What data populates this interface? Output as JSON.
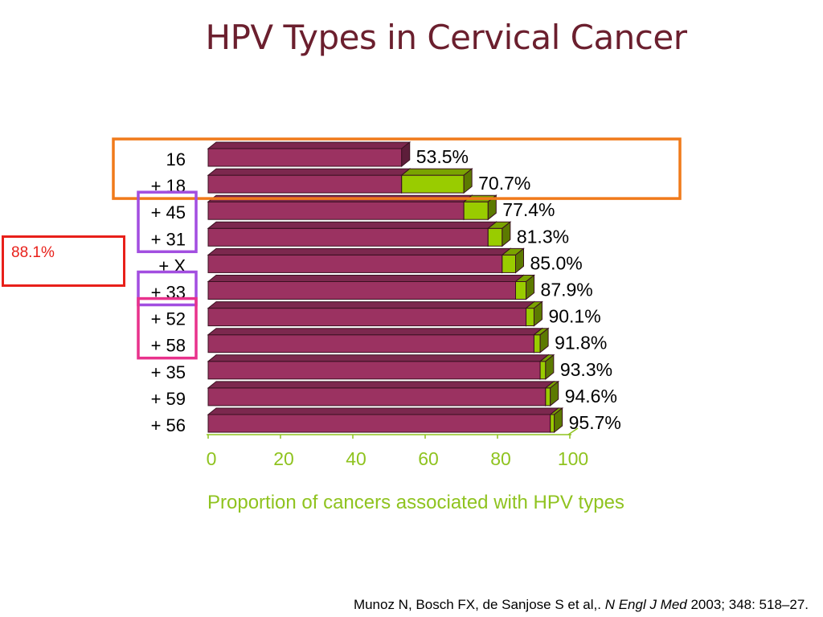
{
  "title": "HPV Types in Cervical Cancer",
  "callout": {
    "text": "88.1%"
  },
  "citation": {
    "before": "Munoz N, Bosch FX, de Sanjose S et al,. ",
    "journal": "N Engl J Med",
    "after": " 2003; 348: 518–27."
  },
  "colors": {
    "bar_base": "#9b3261",
    "bar_increment": "#99cc00",
    "highlight_orange": "#f07a1a",
    "highlight_purple": "#a24ee0",
    "highlight_pink": "#e8328c",
    "callout_red": "#e8201a",
    "axis_green": "#8fc31f"
  },
  "chart_data": {
    "type": "bar",
    "orientation": "horizontal",
    "stacked": true,
    "categories": [
      "16",
      "+ 18",
      "+ 45",
      "+ 31",
      "+ X",
      "+ 33",
      "+ 52",
      "+ 58",
      "+ 35",
      "+ 59",
      "+ 56"
    ],
    "cumulative_values": [
      53.5,
      70.7,
      77.4,
      81.3,
      85.0,
      87.9,
      90.1,
      91.8,
      93.3,
      94.6,
      95.7
    ],
    "value_labels": [
      "53.5%",
      "70.7%",
      "77.4%",
      "81.3%",
      "85.0%",
      "87.9%",
      "90.1%",
      "91.8%",
      "93.3%",
      "94.6%",
      "95.7%"
    ],
    "x_ticks": [
      "0",
      "20",
      "40",
      "60",
      "80",
      "100"
    ],
    "xlim": [
      0,
      100
    ],
    "xlabel": "Proportion of cancers associated with HPV types",
    "highlight_groups": [
      {
        "color_key": "highlight_orange",
        "rows": [
          0,
          1
        ],
        "span": "labels-and-bars"
      },
      {
        "color_key": "highlight_purple",
        "rows": [
          2,
          3
        ],
        "span": "labels"
      },
      {
        "color_key": "highlight_purple",
        "rows": [
          5,
          5
        ],
        "span": "labels"
      },
      {
        "color_key": "highlight_pink",
        "rows": [
          6,
          7
        ],
        "span": "labels"
      }
    ],
    "label_colors": [
      "#8fc31f",
      "#8fc31f",
      "#000000",
      "#000000",
      "#000000",
      "#000000",
      "#000000",
      "#000000",
      "#000000",
      "#000000",
      "#000000"
    ]
  }
}
